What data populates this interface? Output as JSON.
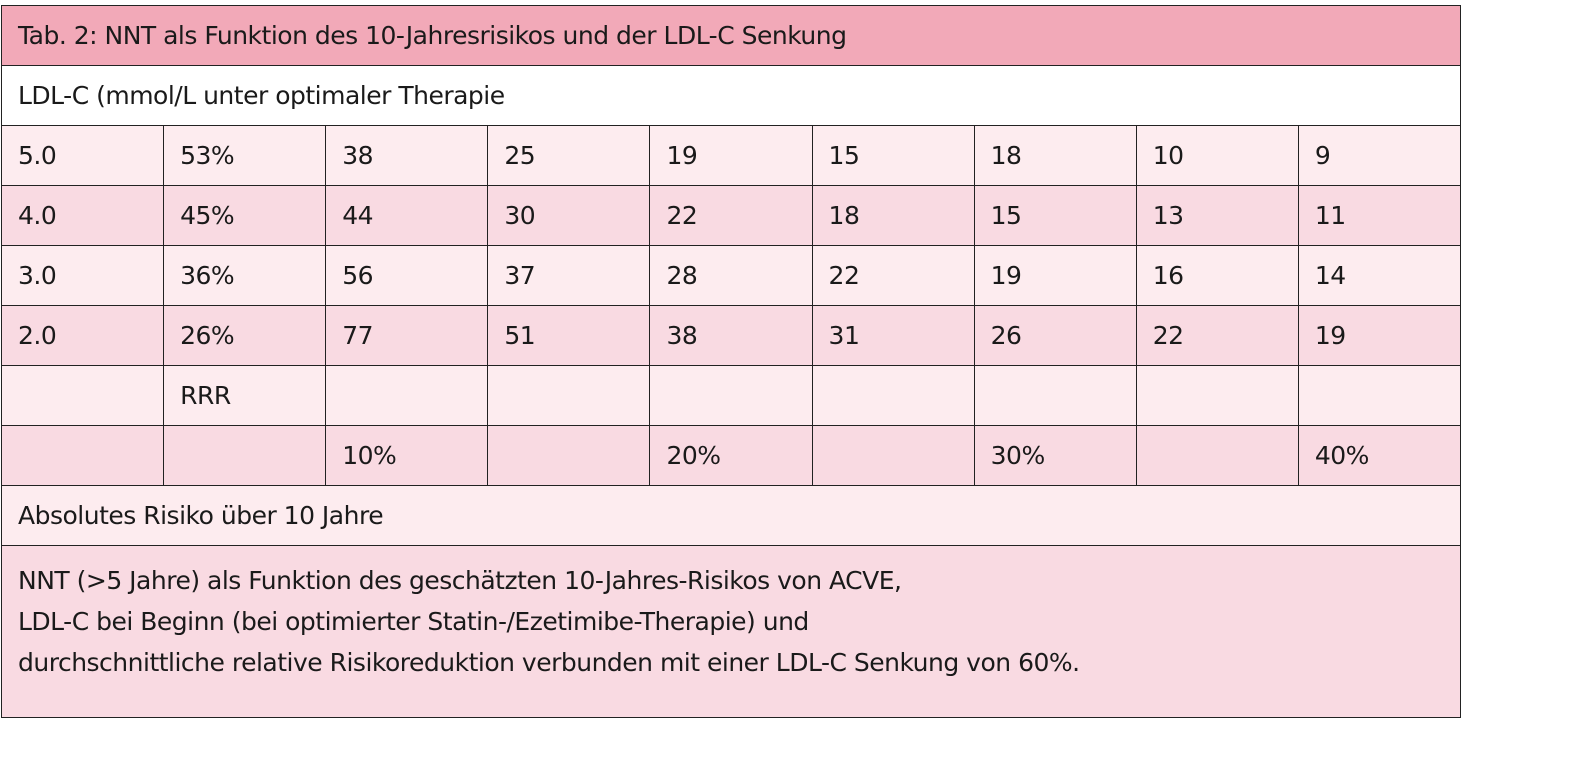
{
  "title": "Tab. 2: NNT als Funktion des 10-Jahresrisikos und der LDL-C Senkung",
  "ldl_label": "LDL-C (mmol/L unter optimaler Therapie",
  "rows": [
    {
      "ldl": "5.0",
      "rrr": "53%",
      "values": [
        "38",
        "25",
        "19",
        "15",
        "18",
        "10",
        "9"
      ]
    },
    {
      "ldl": "4.0",
      "rrr": "45%",
      "values": [
        "44",
        "30",
        "22",
        "18",
        "15",
        "13",
        "11"
      ]
    },
    {
      "ldl": "3.0",
      "rrr": "36%",
      "values": [
        "56",
        "37",
        "28",
        "22",
        "19",
        "16",
        "14"
      ]
    },
    {
      "ldl": "2.0",
      "rrr": "26%",
      "values": [
        "77",
        "51",
        "38",
        "31",
        "26",
        "22",
        "19"
      ]
    }
  ],
  "rrr_label": "RRR",
  "risk_ticks": [
    "10%",
    "",
    "20%",
    "",
    "30%",
    "",
    "40%"
  ],
  "risk_label": "Absolutes Risiko über 10 Jahre",
  "footnote": [
    "NNT (>5 Jahre) als Funktion des geschätzten 10-Jahres-Risikos von ACVE,",
    "LDL-C bei Beginn (bei optimierter Statin-/Ezetimibe-Therapie) und",
    "durchschnittliche relative Risikoreduktion verbunden mit einer  LDL-C Senkung  von 60%."
  ],
  "colors": {
    "title_bg": "#f2a9b8",
    "row_light": "#fdecef",
    "row_dark": "#f9dae2"
  }
}
